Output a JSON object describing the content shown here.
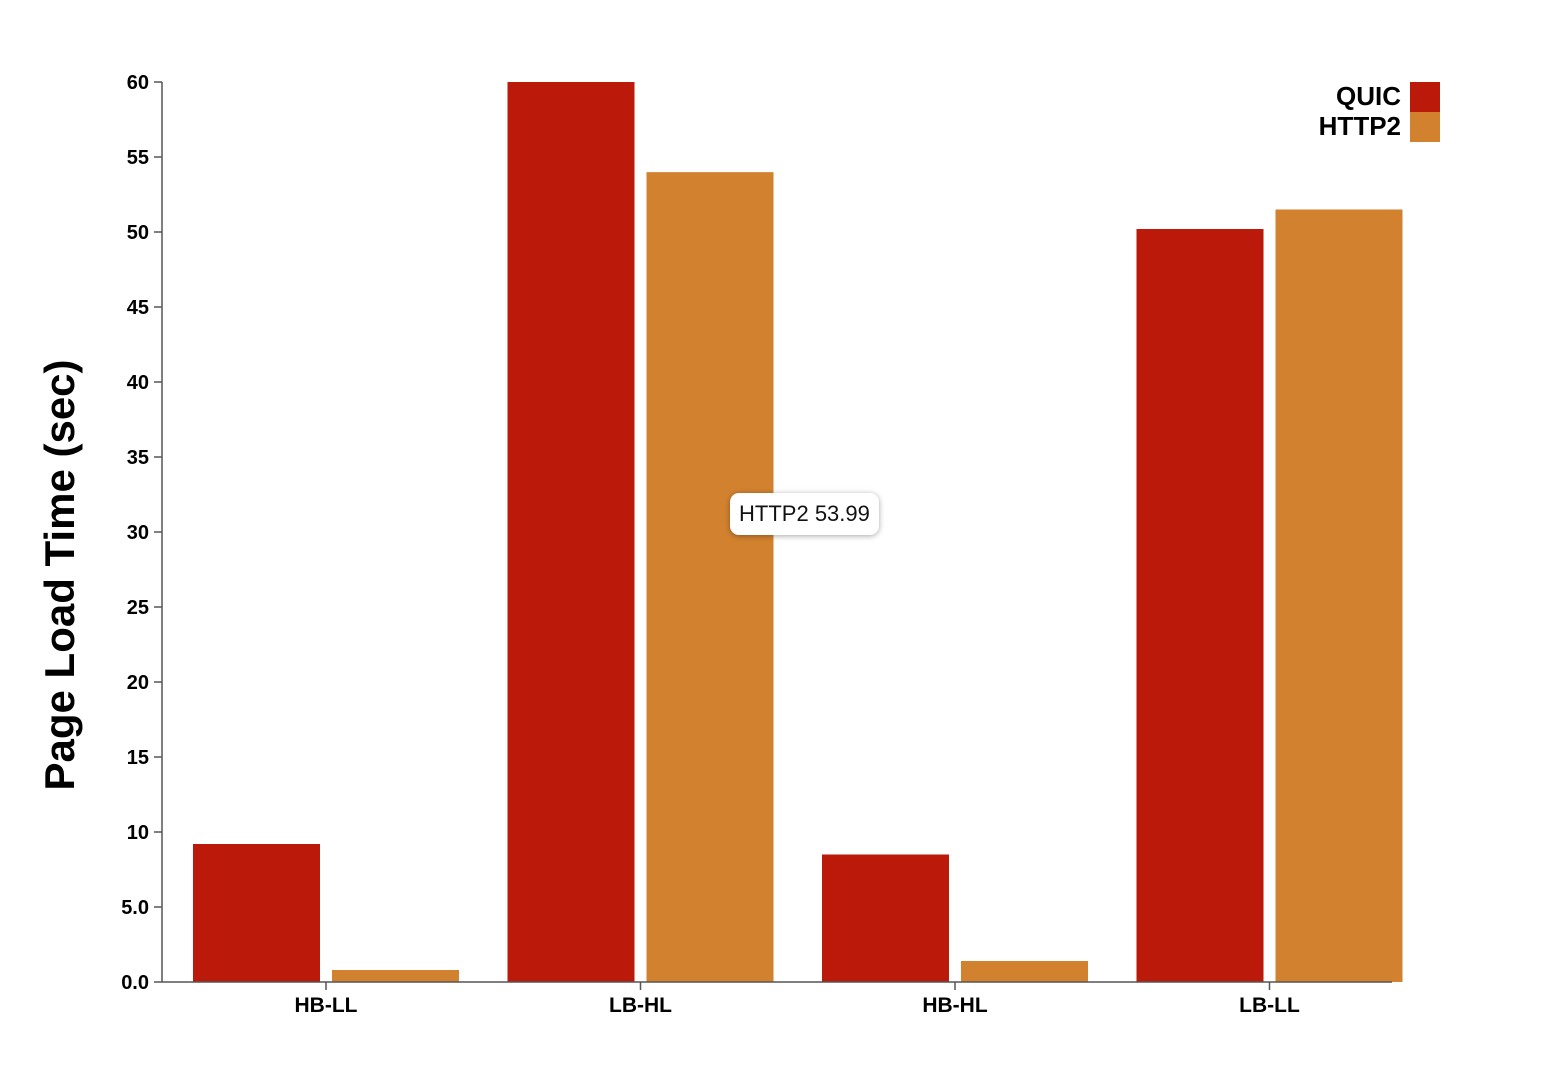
{
  "chart_data": {
    "type": "bar",
    "title": "",
    "xlabel": "",
    "ylabel": "Page Load Time (sec)",
    "ylim": [
      0,
      60
    ],
    "yticks": [
      "0.0",
      "5.0",
      "10",
      "15",
      "20",
      "25",
      "30",
      "35",
      "40",
      "45",
      "50",
      "55",
      "60"
    ],
    "categories": [
      "HB-LL",
      "LB-HL",
      "HB-HL",
      "LB-LL"
    ],
    "series": [
      {
        "name": "QUIC",
        "color": "#bb1a0a",
        "values": [
          9.2,
          60,
          8.5,
          50.2
        ]
      },
      {
        "name": "HTTP2",
        "color": "#d2822f",
        "values": [
          0.8,
          53.99,
          1.4,
          51.5
        ]
      }
    ],
    "legend_position": "top-right",
    "grid": false
  },
  "tooltip": {
    "series": "HTTP2",
    "value": "53.99"
  }
}
